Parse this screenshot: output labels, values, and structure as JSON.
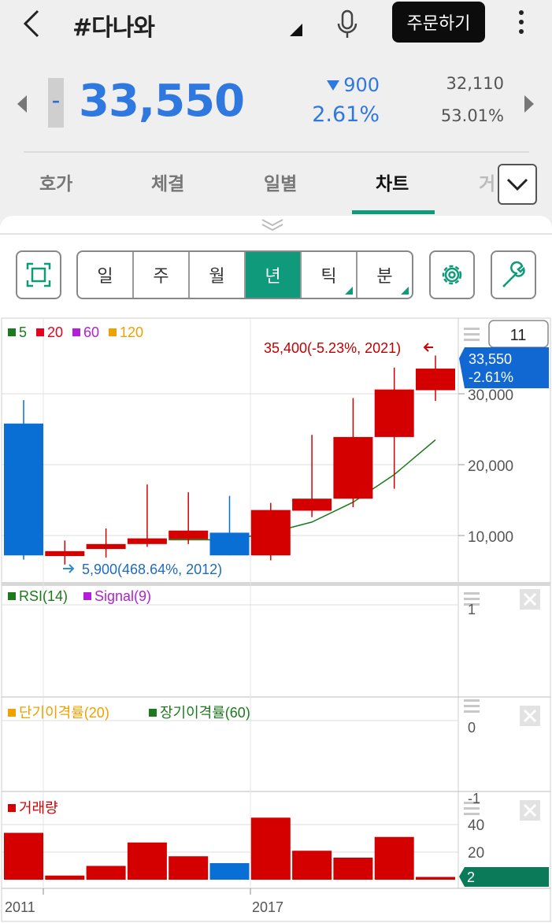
{
  "header": {
    "stock_name": "#다나와",
    "order_label": "주문하기"
  },
  "price": {
    "state_mark": "–",
    "current": "33,550",
    "change_amount": "900",
    "change_rate": "2.61%",
    "volume": "32,110",
    "volume_rate": "53.01%"
  },
  "tabs": [
    {
      "label": "호가",
      "active": false
    },
    {
      "label": "체결",
      "active": false
    },
    {
      "label": "일별",
      "active": false
    },
    {
      "label": "차트",
      "active": true
    },
    {
      "label": "거",
      "active": false
    }
  ],
  "periods": [
    {
      "label": "일",
      "active": false,
      "has_menu": false
    },
    {
      "label": "주",
      "active": false,
      "has_menu": false
    },
    {
      "label": "월",
      "active": false,
      "has_menu": false
    },
    {
      "label": "년",
      "active": true,
      "has_menu": false
    },
    {
      "label": "틱",
      "active": false,
      "has_menu": true
    },
    {
      "label": "분",
      "active": false,
      "has_menu": true
    }
  ],
  "icons": {
    "back": "chevron-left-icon",
    "mic": "microphone-icon",
    "more": "more-vertical-icon",
    "fullscreen": "fullscreen-icon",
    "settings": "gear-icon",
    "tools": "wrench-icon"
  },
  "colors": {
    "up": "#d40000",
    "down": "#0a6fd4",
    "accent": "#0e9a7b",
    "ma5": "#1c7a1c",
    "ma20": "#e8001c",
    "ma60": "#b21fd8",
    "ma120": "#f0a000"
  },
  "chart_data": {
    "type": "candlestick",
    "x_labels": [
      "2011",
      "2017"
    ],
    "bar_count_label": "11",
    "price_pane": {
      "legend": [
        {
          "name": "5",
          "color": "#1c7a1c"
        },
        {
          "name": "20",
          "color": "#e8001c"
        },
        {
          "name": "60",
          "color": "#b21fd8"
        },
        {
          "name": "120",
          "color": "#f0a000"
        }
      ],
      "y_ticks": [
        10000,
        20000,
        30000
      ],
      "y_tick_labels": [
        "10,000",
        "20,000",
        "30,000"
      ],
      "current_label": "33,550",
      "current_rate_label": "-2.61%",
      "max_annotation": "35,400(-5.23%, 2021)",
      "min_annotation": "5,900(468.64%, 2012)",
      "candles": [
        {
          "year": 2011,
          "open": 25800,
          "high": 29100,
          "low": 6600,
          "close": 7200
        },
        {
          "year": 2012,
          "open": 7100,
          "high": 9300,
          "low": 5900,
          "close": 7800
        },
        {
          "year": 2013,
          "open": 8100,
          "high": 11000,
          "low": 6900,
          "close": 8800
        },
        {
          "year": 2014,
          "open": 8800,
          "high": 17200,
          "low": 8400,
          "close": 9600
        },
        {
          "year": 2015,
          "open": 9500,
          "high": 16100,
          "low": 8800,
          "close": 10700
        },
        {
          "year": 2016,
          "open": 10400,
          "high": 15600,
          "low": 7200,
          "close": 7200
        },
        {
          "year": 2017,
          "open": 7200,
          "high": 14600,
          "low": 6500,
          "close": 13600
        },
        {
          "year": 2018,
          "open": 13500,
          "high": 24200,
          "low": 12600,
          "close": 15200
        },
        {
          "year": 2019,
          "open": 15200,
          "high": 29400,
          "low": 14000,
          "close": 23900
        },
        {
          "year": 2020,
          "open": 23900,
          "high": 33700,
          "low": 16600,
          "close": 30600
        },
        {
          "year": 2021,
          "open": 30500,
          "high": 35400,
          "low": 29000,
          "close": 33550
        }
      ],
      "ma5": [
        {
          "year": 2015,
          "value": 9400
        },
        {
          "year": 2016,
          "value": 9400
        },
        {
          "year": 2017,
          "value": 10400
        },
        {
          "year": 2018,
          "value": 11900
        },
        {
          "year": 2019,
          "value": 14700
        },
        {
          "year": 2020,
          "value": 18600
        },
        {
          "year": 2021,
          "value": 23500
        }
      ]
    },
    "rsi_pane": {
      "legend": [
        {
          "name": "RSI(14)",
          "color": "#1c7a1c"
        },
        {
          "name": "Signal(9)",
          "color": "#b21fd8"
        }
      ],
      "y_label": "1"
    },
    "disparity_pane": {
      "legend": [
        {
          "name": "단기이격률(20)",
          "color": "#f0a000"
        },
        {
          "name": "장기이격률(60)",
          "color": "#1c7a1c"
        }
      ],
      "y_label_top": "0",
      "y_label_bottom": "-1"
    },
    "volume_pane": {
      "legend": [
        {
          "name": "거래량",
          "color": "#d40000"
        }
      ],
      "y_ticks": [
        20,
        40
      ],
      "current_label": "2",
      "bars": [
        {
          "year": 2011,
          "value": 34,
          "dir": "up"
        },
        {
          "year": 2012,
          "value": 3,
          "dir": "up"
        },
        {
          "year": 2013,
          "value": 10,
          "dir": "up"
        },
        {
          "year": 2014,
          "value": 27,
          "dir": "up"
        },
        {
          "year": 2015,
          "value": 17,
          "dir": "up"
        },
        {
          "year": 2016,
          "value": 12,
          "dir": "down"
        },
        {
          "year": 2017,
          "value": 45,
          "dir": "up"
        },
        {
          "year": 2018,
          "value": 21,
          "dir": "up"
        },
        {
          "year": 2019,
          "value": 16,
          "dir": "up"
        },
        {
          "year": 2020,
          "value": 31,
          "dir": "up"
        },
        {
          "year": 2021,
          "value": 2,
          "dir": "up"
        }
      ]
    }
  }
}
